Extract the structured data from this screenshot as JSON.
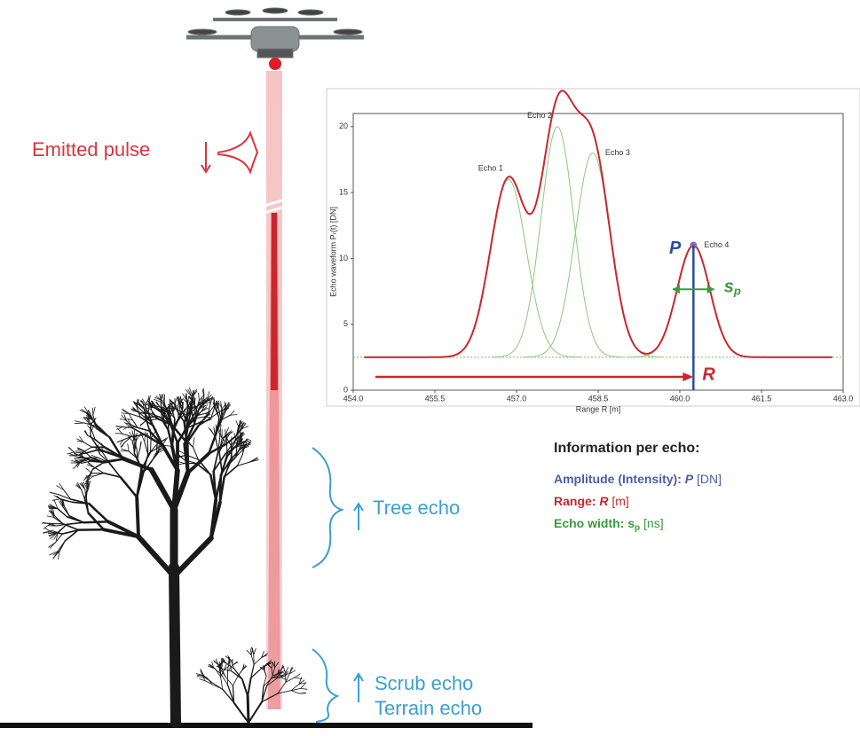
{
  "diagram": {
    "emitted_pulse": "Emitted pulse",
    "tree_echo": "Tree echo",
    "scrub_echo": "Scrub echo",
    "terrain_echo": "Terrain echo",
    "info": {
      "title": "Information per echo:",
      "amplitude": {
        "label": "Amplitude (Intensity): ",
        "symbol": "P",
        "unit": " [DN]"
      },
      "range": {
        "label": "Range: ",
        "symbol": "R",
        "unit": " [m]"
      },
      "width": {
        "label": "Echo width: ",
        "symbol": "s",
        "sub": "p",
        "unit": " [ns]"
      }
    }
  },
  "waveform": {
    "y_label": "Echo waveform Pᵣ(t) [DN]",
    "x_label": "Range R [m]",
    "xlim": [
      454,
      463
    ],
    "ylim": [
      0,
      21
    ],
    "xticks": [
      {
        "value": 454,
        "label": "454.0"
      },
      455.5,
      {
        "value": 457,
        "label": "457.0"
      },
      458.5,
      {
        "value": 460,
        "label": "460.0"
      },
      461.5,
      {
        "value": 463,
        "label": "463.0"
      }
    ],
    "yticks": [
      0,
      5,
      10,
      15,
      20
    ],
    "baseline": 2.5,
    "echoes": [
      {
        "name": "Echo 1",
        "position": 456.85,
        "peak": 16,
        "width": 0.33
      },
      {
        "name": "Echo 2",
        "position": 457.75,
        "peak": 20,
        "width": 0.3
      },
      {
        "name": "Echo 3",
        "position": 458.4,
        "peak": 18,
        "width": 0.32
      },
      {
        "name": "Echo 4",
        "position": 460.25,
        "peak": 11,
        "width": 0.3
      }
    ],
    "p_symbol": "P",
    "r_symbol": "R",
    "s_symbol": "s",
    "s_sub": "p"
  }
}
